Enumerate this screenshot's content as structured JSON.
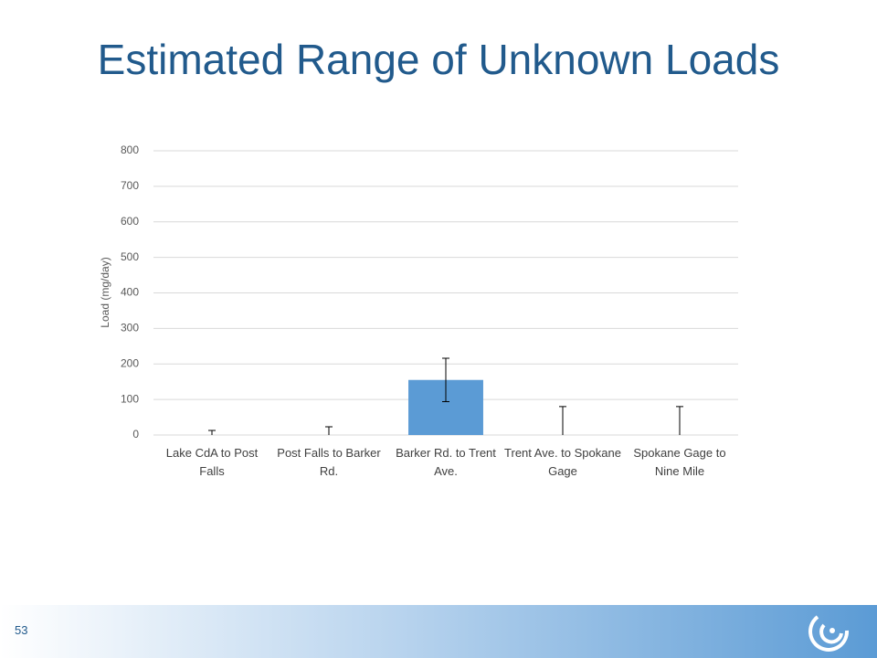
{
  "chart_data": {
    "type": "bar",
    "title": "Estimated Range of Unknown Loads",
    "y_label": "Load (mg/day)",
    "categories": [
      "Lake CdA to Post Falls",
      "Post Falls to Barker Rd.",
      "Barker Rd. to Trent Ave.",
      "Trent Ave. to Spokane Gage",
      "Spokane Gage to Nine Mile"
    ],
    "values": [
      0,
      0,
      155,
      0,
      0
    ],
    "errors": [
      13,
      23,
      61,
      80,
      80
    ],
    "color": "#5b9bd5",
    "ylim": [
      0,
      800
    ],
    "yticks": [
      0,
      100,
      200,
      300,
      400,
      500,
      600,
      700,
      800
    ],
    "grid": true
  },
  "slide_number": 53
}
